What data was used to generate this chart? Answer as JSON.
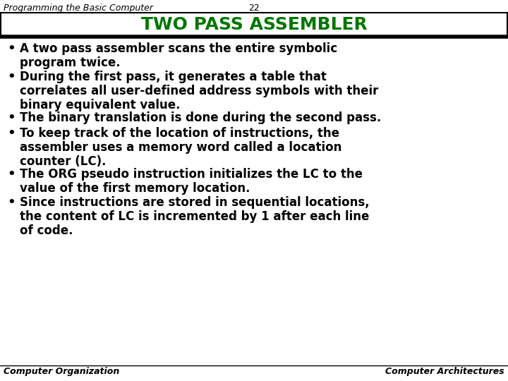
{
  "header_left": "Programming the Basic Computer",
  "header_center": "22",
  "title": "TWO PASS ASSEMBLER",
  "footer_left": "Computer Organization",
  "footer_right": "Computer Architectures",
  "bg_color": "#FFFFFF",
  "title_color": "#007700",
  "header_color": "#000000",
  "body_color": "#000000",
  "bullet_points": [
    "A two pass assembler scans the entire symbolic\nprogram twice.",
    "During the first pass, it generates a table that\ncorrelates all user-defined address symbols with their\nbinary equivalent value.",
    "The binary translation is done during the second pass.",
    "To keep track of the location of instructions, the\nassembler uses a memory word called a location\ncounter (LC).",
    "The ORG pseudo instruction initializes the LC to the\nvalue of the first memory location.",
    "Since instructions are stored in sequential locations,\nthe content of LC is incremented by 1 after each line\nof code."
  ],
  "header_font_size": 9,
  "title_font_size": 18,
  "bullet_font_size": 12,
  "footer_font_size": 9
}
